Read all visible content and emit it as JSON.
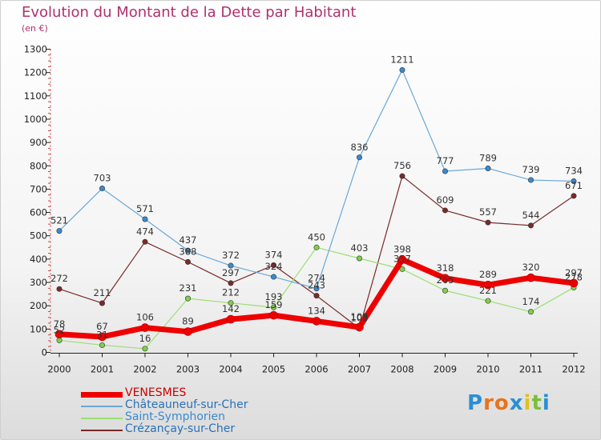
{
  "title": "Evolution du Montant de la Dette par Habitant",
  "subtitle": "(en €)",
  "logo": {
    "text": "Proxiti",
    "colors": [
      "#2a8fd4",
      "#e8731c",
      "#e8731c",
      "#2a8fd4",
      "#e0c020",
      "#7abf3a",
      "#2a8fd4"
    ]
  },
  "chart_data": {
    "type": "line",
    "x": [
      "2000",
      "2001",
      "2002",
      "2003",
      "2004",
      "2005",
      "2006",
      "2007",
      "2008",
      "2009",
      "2010",
      "2011",
      "2012"
    ],
    "ylim": [
      0,
      1300
    ],
    "yticks": [
      "0",
      "100",
      "200",
      "300",
      "400",
      "500",
      "600",
      "700",
      "800",
      "900",
      "1000",
      "1100",
      "1200",
      "1300"
    ],
    "grid": false,
    "legend_position": "bottom-left",
    "series": [
      {
        "name": "Crézançay-sur-Cher",
        "color": "#7a2a2a",
        "marker": "#7a2a2a",
        "width": 1.2,
        "values": [
          272,
          211,
          474,
          388,
          297,
          374,
          243,
          103,
          756,
          609,
          557,
          544,
          671
        ],
        "labels": [
          "272",
          "211",
          "474",
          "388",
          "297",
          "374",
          "243",
          "103",
          "756",
          "609",
          "557",
          "544",
          "671"
        ]
      },
      {
        "name": "Saint-Symphorien",
        "color": "#9adf72",
        "marker": "#7fcf4a",
        "width": 1.2,
        "values": [
          52,
          31,
          16,
          231,
          212,
          193,
          450,
          403,
          357,
          265,
          221,
          174,
          278
        ],
        "labels": [
          "52",
          "31",
          "16",
          "231",
          "212",
          "193",
          "450",
          "403",
          "357",
          "265",
          "221",
          "174",
          "278"
        ]
      },
      {
        "name": "Châteauneuf-sur-Cher",
        "color": "#6aa8d8",
        "marker": "#3a8ad0",
        "width": 1.2,
        "values": [
          521,
          703,
          571,
          437,
          372,
          324,
          274,
          836,
          1211,
          777,
          789,
          739,
          734
        ],
        "labels": [
          "521",
          "703",
          "571",
          "437",
          "372",
          "324",
          "274",
          "836",
          "1211",
          "777",
          "789",
          "739",
          "734"
        ]
      },
      {
        "name": "VENESMES",
        "color": "#ee0000",
        "marker": "#ee0000",
        "width": 7,
        "values": [
          78,
          67,
          106,
          89,
          142,
          159,
          134,
          108,
          398,
          318,
          289,
          320,
          297
        ],
        "labels": [
          "78",
          "67",
          "106",
          "89",
          "142",
          "159",
          "134",
          "108",
          "398",
          "318",
          "289",
          "320",
          "297"
        ]
      }
    ],
    "legend": [
      {
        "name": "VENESMES",
        "color": "#ee0000",
        "text_color": "#cc0000",
        "height": 7
      },
      {
        "name": "Châteauneuf-sur-Cher",
        "color": "#6aa8d8",
        "text_color": "#2a70b8",
        "height": 2
      },
      {
        "name": "Saint-Symphorien",
        "color": "#9adf72",
        "text_color": "#3a8ad0",
        "height": 2
      },
      {
        "name": "Crézançay-sur-Cher",
        "color": "#7a2a2a",
        "text_color": "#2a70b8",
        "height": 2
      }
    ]
  }
}
